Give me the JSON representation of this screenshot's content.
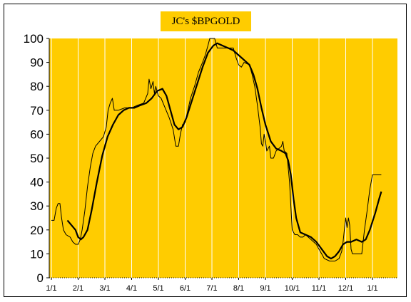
{
  "chart_data": {
    "type": "line",
    "title": "JC's $BPGOLD",
    "xlabel": "",
    "ylabel": "",
    "ylim": [
      0,
      100
    ],
    "yticks": [
      "0",
      "10",
      "20",
      "30",
      "40",
      "50",
      "60",
      "70",
      "80",
      "90",
      "100"
    ],
    "x_tick_labels": [
      "1/1",
      "2/1",
      "3/1",
      "4/1",
      "5/1",
      "6/1",
      "7/1",
      "8/1",
      "9/1",
      "10/1",
      "11/1",
      "12/1",
      "1/1"
    ],
    "grid": "vertical",
    "legend": "none",
    "background_color": "#ffcc00",
    "series": [
      {
        "style": "thin",
        "color": "#000000",
        "points": [
          [
            0.0,
            24
          ],
          [
            0.1,
            24
          ],
          [
            0.18,
            29
          ],
          [
            0.25,
            31
          ],
          [
            0.32,
            31
          ],
          [
            0.38,
            25
          ],
          [
            0.45,
            20
          ],
          [
            0.55,
            18
          ],
          [
            0.7,
            17
          ],
          [
            0.8,
            15
          ],
          [
            0.9,
            14
          ],
          [
            1.0,
            14
          ],
          [
            1.08,
            16
          ],
          [
            1.15,
            20
          ],
          [
            1.25,
            28
          ],
          [
            1.35,
            38
          ],
          [
            1.45,
            46
          ],
          [
            1.55,
            52
          ],
          [
            1.65,
            55
          ],
          [
            1.8,
            57
          ],
          [
            1.95,
            59
          ],
          [
            2.0,
            61
          ],
          [
            2.05,
            63
          ],
          [
            2.12,
            70
          ],
          [
            2.2,
            73
          ],
          [
            2.28,
            75
          ],
          [
            2.35,
            70
          ],
          [
            2.5,
            70
          ],
          [
            2.75,
            71
          ],
          [
            3.0,
            71
          ],
          [
            3.2,
            72
          ],
          [
            3.45,
            73
          ],
          [
            3.6,
            77
          ],
          [
            3.65,
            83
          ],
          [
            3.72,
            79
          ],
          [
            3.8,
            82
          ],
          [
            3.85,
            77
          ],
          [
            3.9,
            80
          ],
          [
            4.0,
            76
          ],
          [
            4.1,
            75
          ],
          [
            4.25,
            71
          ],
          [
            4.4,
            67
          ],
          [
            4.55,
            62
          ],
          [
            4.65,
            55
          ],
          [
            4.75,
            55
          ],
          [
            4.82,
            60
          ],
          [
            4.9,
            64
          ],
          [
            5.0,
            65
          ],
          [
            5.1,
            70
          ],
          [
            5.2,
            75
          ],
          [
            5.35,
            80
          ],
          [
            5.5,
            86
          ],
          [
            5.65,
            90
          ],
          [
            5.75,
            93
          ],
          [
            5.85,
            97
          ],
          [
            5.92,
            100
          ],
          [
            6.0,
            100
          ],
          [
            6.1,
            100
          ],
          [
            6.2,
            96
          ],
          [
            6.5,
            96
          ],
          [
            6.8,
            96
          ],
          [
            6.9,
            92
          ],
          [
            7.0,
            89
          ],
          [
            7.1,
            88
          ],
          [
            7.2,
            90
          ],
          [
            7.4,
            89
          ],
          [
            7.5,
            85
          ],
          [
            7.6,
            80
          ],
          [
            7.7,
            72
          ],
          [
            7.8,
            63
          ],
          [
            7.85,
            56
          ],
          [
            7.9,
            55
          ],
          [
            7.95,
            60
          ],
          [
            8.0,
            57
          ],
          [
            8.05,
            53
          ],
          [
            8.15,
            55
          ],
          [
            8.2,
            50
          ],
          [
            8.3,
            50
          ],
          [
            8.4,
            53
          ],
          [
            8.5,
            54
          ],
          [
            8.6,
            55
          ],
          [
            8.65,
            57
          ],
          [
            8.7,
            53
          ],
          [
            8.8,
            52
          ],
          [
            8.9,
            40
          ],
          [
            8.95,
            30
          ],
          [
            9.0,
            20
          ],
          [
            9.1,
            18
          ],
          [
            9.2,
            18
          ],
          [
            9.3,
            17
          ],
          [
            9.4,
            17
          ],
          [
            9.5,
            18
          ],
          [
            9.6,
            17
          ],
          [
            9.7,
            16
          ],
          [
            9.8,
            15
          ],
          [
            9.9,
            14
          ],
          [
            10.0,
            12
          ],
          [
            10.1,
            10
          ],
          [
            10.2,
            8
          ],
          [
            10.4,
            7
          ],
          [
            10.6,
            7
          ],
          [
            10.75,
            8
          ],
          [
            10.85,
            11
          ],
          [
            10.9,
            15
          ],
          [
            10.95,
            20
          ],
          [
            11.0,
            25
          ],
          [
            11.05,
            21
          ],
          [
            11.1,
            25
          ],
          [
            11.15,
            22
          ],
          [
            11.2,
            12
          ],
          [
            11.25,
            10
          ],
          [
            11.4,
            10
          ],
          [
            11.6,
            10
          ],
          [
            11.7,
            20
          ],
          [
            11.8,
            28
          ],
          [
            11.9,
            37
          ],
          [
            12.0,
            43
          ],
          [
            12.1,
            43
          ],
          [
            12.25,
            43
          ],
          [
            12.33,
            43
          ]
        ]
      },
      {
        "style": "thick",
        "color": "#000000",
        "points": [
          [
            0.6,
            24
          ],
          [
            0.9,
            20
          ],
          [
            1.0,
            17
          ],
          [
            1.1,
            16
          ],
          [
            1.2,
            17
          ],
          [
            1.35,
            20
          ],
          [
            1.5,
            28
          ],
          [
            1.7,
            40
          ],
          [
            1.9,
            51
          ],
          [
            2.1,
            59
          ],
          [
            2.3,
            64
          ],
          [
            2.5,
            68
          ],
          [
            2.7,
            70
          ],
          [
            2.9,
            71
          ],
          [
            3.1,
            71
          ],
          [
            3.3,
            72
          ],
          [
            3.55,
            73
          ],
          [
            3.75,
            75
          ],
          [
            3.95,
            78
          ],
          [
            4.15,
            79
          ],
          [
            4.3,
            76
          ],
          [
            4.45,
            70
          ],
          [
            4.6,
            64
          ],
          [
            4.75,
            62
          ],
          [
            4.9,
            63
          ],
          [
            5.05,
            67
          ],
          [
            5.25,
            74
          ],
          [
            5.45,
            81
          ],
          [
            5.65,
            88
          ],
          [
            5.85,
            94
          ],
          [
            6.05,
            97
          ],
          [
            6.2,
            98
          ],
          [
            6.4,
            97
          ],
          [
            6.6,
            96
          ],
          [
            6.8,
            95
          ],
          [
            7.0,
            93
          ],
          [
            7.2,
            91
          ],
          [
            7.4,
            89
          ],
          [
            7.55,
            85
          ],
          [
            7.7,
            79
          ],
          [
            7.85,
            71
          ],
          [
            8.0,
            64
          ],
          [
            8.2,
            57
          ],
          [
            8.4,
            54
          ],
          [
            8.6,
            53
          ],
          [
            8.75,
            52
          ],
          [
            8.85,
            49
          ],
          [
            8.95,
            43
          ],
          [
            9.05,
            33
          ],
          [
            9.15,
            25
          ],
          [
            9.3,
            19
          ],
          [
            9.5,
            18
          ],
          [
            9.7,
            17
          ],
          [
            9.9,
            15
          ],
          [
            10.1,
            12
          ],
          [
            10.3,
            9
          ],
          [
            10.45,
            8
          ],
          [
            10.6,
            9
          ],
          [
            10.75,
            11
          ],
          [
            10.9,
            14
          ],
          [
            11.05,
            15
          ],
          [
            11.2,
            15
          ],
          [
            11.4,
            16
          ],
          [
            11.6,
            15
          ],
          [
            11.75,
            16
          ],
          [
            11.9,
            20
          ],
          [
            12.1,
            27
          ],
          [
            12.25,
            33
          ],
          [
            12.33,
            36
          ]
        ]
      }
    ]
  }
}
